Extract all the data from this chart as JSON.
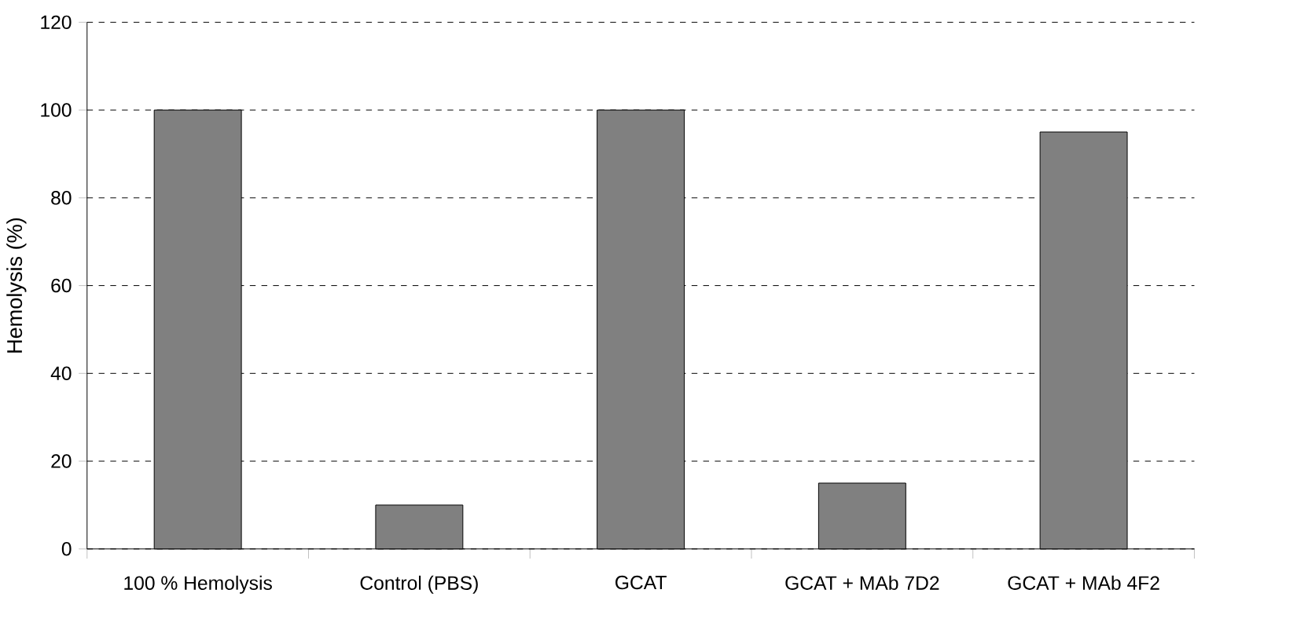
{
  "chart_data": {
    "type": "bar",
    "ylabel": "Hemolysis  (%)",
    "categories": [
      "100 % Hemolysis",
      "Control (PBS)",
      "GCAT",
      "GCAT + MAb 7D2",
      "GCAT + MAb 4F2"
    ],
    "values": [
      100,
      10,
      100,
      15,
      95
    ],
    "color": "#808080",
    "ylim": [
      0,
      120
    ],
    "yticks": [
      0,
      20,
      40,
      60,
      80,
      100,
      120
    ],
    "grid": "y"
  }
}
